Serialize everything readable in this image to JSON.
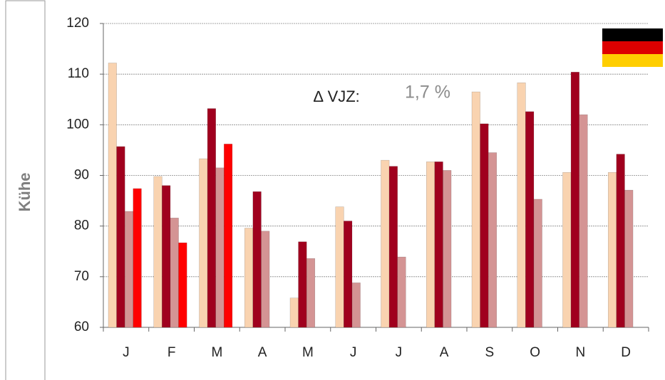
{
  "chart_data": {
    "type": "bar",
    "y_label": "Kühe",
    "annotation_label": "∆ VJZ:",
    "annotation_value": "1,7 %",
    "categories": [
      "J",
      "F",
      "M",
      "A",
      "M",
      "J",
      "J",
      "A",
      "S",
      "O",
      "N",
      "D"
    ],
    "series": [
      {
        "color": "#f9d3b0",
        "values": [
          112.2,
          89.8,
          93.3,
          79.6,
          65.8,
          83.8,
          93.0,
          92.7,
          106.5,
          108.3,
          90.6,
          90.6
        ]
      },
      {
        "color": "#a0001e",
        "values": [
          95.7,
          88.0,
          103.2,
          86.8,
          76.9,
          81.0,
          91.8,
          92.7,
          100.2,
          102.6,
          110.4,
          94.2
        ]
      },
      {
        "color": "#d49494",
        "values": [
          82.9,
          81.6,
          91.5,
          79.0,
          73.6,
          68.8,
          73.9,
          91.0,
          94.5,
          85.3,
          102.0,
          87.1
        ]
      },
      {
        "color": "#ff0000",
        "values": [
          87.4,
          76.7,
          96.2,
          null,
          null,
          null,
          null,
          null,
          null,
          null,
          null,
          null
        ]
      }
    ],
    "ylim": [
      60,
      120
    ],
    "yticks": [
      60,
      70,
      80,
      90,
      100,
      110,
      120
    ],
    "grid": true
  }
}
